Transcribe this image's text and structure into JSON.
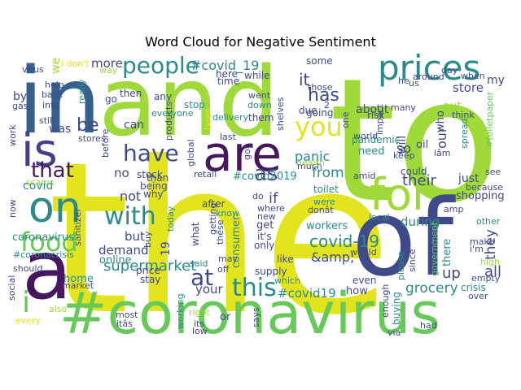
{
  "title": "Word Cloud for Negative Sentiment",
  "colors": {
    "yellow": "#e2e51d",
    "green": "#67c95a",
    "lime": "#9fd93a",
    "teal": "#2b8a8a",
    "blue": "#355f8d",
    "navy": "#3f4a8a",
    "indigo": "#433e85",
    "purple": "#46165e",
    "seagreen": "#26a783",
    "sea": "#2aa57f"
  },
  "words": [
    {
      "id": "the",
      "text": "the"
    },
    {
      "id": "to",
      "text": "to"
    },
    {
      "id": "and",
      "text": "and"
    },
    {
      "id": "in",
      "text": "in"
    },
    {
      "id": "of",
      "text": "of"
    },
    {
      "id": "coronavirus-hashtag",
      "text": "#coronavirus"
    },
    {
      "id": "a",
      "text": "a"
    },
    {
      "id": "is",
      "text": "is"
    },
    {
      "id": "are",
      "text": "are"
    },
    {
      "id": "for",
      "text": "for"
    },
    {
      "id": "prices",
      "text": "prices"
    },
    {
      "id": "on",
      "text": "on"
    },
    {
      "id": "people",
      "text": "people"
    },
    {
      "id": "you",
      "text": "you"
    },
    {
      "id": "food",
      "text": "food"
    },
    {
      "id": "with",
      "text": "with"
    },
    {
      "id": "this",
      "text": "this"
    },
    {
      "id": "have",
      "text": "have"
    },
    {
      "id": "that",
      "text": "that"
    },
    {
      "id": "at",
      "text": "at"
    },
    {
      "id": "as",
      "text": "as"
    },
    {
      "id": "be",
      "text": "be"
    },
    {
      "id": "i",
      "text": "i"
    },
    {
      "id": "covid-19",
      "text": "covid-19"
    },
    {
      "id": "covid19-hashtag-top",
      "text": "#covid_19"
    },
    {
      "id": "supermarket",
      "text": "supermarket"
    },
    {
      "id": "has",
      "text": "has"
    },
    {
      "id": "it",
      "text": "it"
    },
    {
      "id": "store",
      "text": "store"
    },
    {
      "id": "grocery",
      "text": "grocery"
    },
    {
      "id": "from",
      "text": "from"
    },
    {
      "id": "panic",
      "text": "panic"
    },
    {
      "id": "amp",
      "text": "&amp;"
    },
    {
      "id": "covid19-hashtag",
      "text": "#covid19"
    },
    {
      "id": "their",
      "text": "their"
    },
    {
      "id": "all",
      "text": "all"
    },
    {
      "id": "they",
      "text": "they"
    },
    {
      "id": "up",
      "text": "up"
    },
    {
      "id": "covid2019-hashtag",
      "text": "#covid2019"
    },
    {
      "id": "more",
      "text": "more"
    },
    {
      "id": "not",
      "text": "not"
    },
    {
      "id": "but",
      "text": "but"
    },
    {
      "id": "demand",
      "text": "demand"
    },
    {
      "id": "your",
      "text": "your"
    },
    {
      "id": "during",
      "text": "during"
    },
    {
      "id": "no",
      "text": "no"
    },
    {
      "id": "if",
      "text": "if"
    },
    {
      "id": "our",
      "text": "our"
    },
    {
      "id": "so",
      "text": "so"
    },
    {
      "id": "will",
      "text": "will"
    },
    {
      "id": "out",
      "text": "out"
    },
    {
      "id": "about",
      "text": "about"
    },
    {
      "id": "by",
      "text": "by"
    },
    {
      "id": "my",
      "text": "my"
    },
    {
      "id": "can",
      "text": "can"
    },
    {
      "id": "covid",
      "text": "covid"
    },
    {
      "id": "coronavirus",
      "text": "coronavirus"
    },
    {
      "id": "home",
      "text": "home"
    },
    {
      "id": "online",
      "text": "online"
    },
    {
      "id": "we",
      "text": "we"
    },
    {
      "id": "was",
      "text": "was"
    },
    {
      "id": "19",
      "text": "19"
    },
    {
      "id": "consumer",
      "text": "consumer"
    },
    {
      "id": "shopping",
      "text": "shopping"
    },
    {
      "id": "just",
      "text": "just"
    },
    {
      "id": "could",
      "text": "could"
    },
    {
      "id": "there",
      "text": "there"
    },
    {
      "id": "how",
      "text": "how"
    },
    {
      "id": "workers",
      "text": "workers"
    },
    {
      "id": "need",
      "text": "need"
    },
    {
      "id": "get",
      "text": "get"
    },
    {
      "id": "its",
      "text": "it's"
    },
    {
      "id": "only",
      "text": "only"
    },
    {
      "id": "like",
      "text": "like"
    },
    {
      "id": "supply",
      "text": "supply"
    },
    {
      "id": "price",
      "text": "price"
    },
    {
      "id": "stay",
      "text": "stay"
    },
    {
      "id": "buying",
      "text": "buying"
    },
    {
      "id": "crisis",
      "text": "crisis"
    },
    {
      "id": "some",
      "text": "some"
    },
    {
      "id": "here",
      "text": "here"
    },
    {
      "id": "time",
      "text": "time"
    },
    {
      "id": "while",
      "text": "while"
    },
    {
      "id": "then",
      "text": "then"
    },
    {
      "id": "go",
      "text": "go"
    },
    {
      "id": "any",
      "text": "any"
    },
    {
      "id": "stop",
      "text": "stop"
    },
    {
      "id": "them",
      "text": "them"
    },
    {
      "id": "going",
      "text": "going"
    },
    {
      "id": "due",
      "text": "due"
    },
    {
      "id": "pandemic",
      "text": "pandemic"
    },
    {
      "id": "risk",
      "text": "risk"
    },
    {
      "id": "toilet",
      "text": "toilet"
    },
    {
      "id": "after",
      "text": "after"
    },
    {
      "id": "what",
      "text": "what"
    },
    {
      "id": "why",
      "text": "why"
    },
    {
      "id": "being",
      "text": "being"
    },
    {
      "id": "than",
      "text": "than"
    },
    {
      "id": "stock",
      "text": "stock"
    },
    {
      "id": "even",
      "text": "even"
    },
    {
      "id": "said",
      "text": "said"
    },
    {
      "id": "which",
      "text": "which"
    },
    {
      "id": "because",
      "text": "because"
    },
    {
      "id": "see",
      "text": "see"
    },
    {
      "id": "other",
      "text": "other"
    },
    {
      "id": "make",
      "text": "make"
    },
    {
      "id": "im",
      "text": "i'm"
    },
    {
      "id": "would",
      "text": "would"
    },
    {
      "id": "please",
      "text": "please"
    },
    {
      "id": "since",
      "text": "since"
    },
    {
      "id": "government",
      "text": "government"
    },
    {
      "id": "over",
      "text": "over"
    },
    {
      "id": "via",
      "text": "via"
    },
    {
      "id": "had",
      "text": "had"
    },
    {
      "id": "empty",
      "text": "empty"
    },
    {
      "id": "high",
      "text": "high"
    },
    {
      "id": "enough",
      "text": "enough"
    },
    {
      "id": "most",
      "text": "most"
    },
    {
      "id": "itas",
      "text": "itâs"
    },
    {
      "id": "its2",
      "text": "its"
    },
    {
      "id": "low",
      "text": "low"
    },
    {
      "id": "right",
      "text": "right"
    },
    {
      "id": "or",
      "text": "or"
    },
    {
      "id": "says",
      "text": "says"
    },
    {
      "id": "also",
      "text": "also"
    },
    {
      "id": "every",
      "text": "every"
    },
    {
      "id": "social",
      "text": "social"
    },
    {
      "id": "market",
      "text": "market"
    },
    {
      "id": "should",
      "text": "should"
    },
    {
      "id": "coronacrisis-hashtag",
      "text": "#coronacrisis"
    },
    {
      "id": "now",
      "text": "now"
    },
    {
      "id": "work",
      "text": "work"
    },
    {
      "id": "gas",
      "text": "gas"
    },
    {
      "id": "into",
      "text": "into"
    },
    {
      "id": "still",
      "text": "still"
    },
    {
      "id": "back",
      "text": "back"
    },
    {
      "id": "help",
      "text": "help"
    },
    {
      "id": "virus",
      "text": "virus"
    },
    {
      "id": "dont",
      "text": "i don't"
    },
    {
      "id": "way",
      "text": "way"
    },
    {
      "id": "really",
      "text": "really"
    },
    {
      "id": "stores",
      "text": "stores"
    },
    {
      "id": "before",
      "text": "before"
    },
    {
      "id": "scams",
      "text": "scams"
    },
    {
      "id": "everyone",
      "text": "everyone"
    },
    {
      "id": "products",
      "text": "products"
    },
    {
      "id": "global",
      "text": "global"
    },
    {
      "id": "retail",
      "text": "retail"
    },
    {
      "id": "delivery",
      "text": "delivery"
    },
    {
      "id": "been",
      "text": "been"
    },
    {
      "id": "last",
      "text": "last"
    },
    {
      "id": "went",
      "text": "went"
    },
    {
      "id": "down",
      "text": "down"
    },
    {
      "id": "got",
      "text": "got"
    },
    {
      "id": "shelves",
      "text": "shelves"
    },
    {
      "id": "those",
      "text": "those"
    },
    {
      "id": "much",
      "text": "much"
    },
    {
      "id": "health",
      "text": "health"
    },
    {
      "id": "2",
      "text": "2"
    },
    {
      "id": "one",
      "text": "one"
    },
    {
      "id": "world",
      "text": "world"
    },
    {
      "id": "impact",
      "text": "impact"
    },
    {
      "id": "keep",
      "text": "keep"
    },
    {
      "id": "many",
      "text": "many"
    },
    {
      "id": "oil",
      "text": "oil"
    },
    {
      "id": "think",
      "text": "think"
    },
    {
      "id": "who",
      "text": "who"
    },
    {
      "id": "spread",
      "text": "spread"
    },
    {
      "id": "toiletpaper-hashtag",
      "text": "#toiletpaper"
    },
    {
      "id": "iam",
      "text": "iâm"
    },
    {
      "id": "when",
      "text": "when"
    },
    {
      "id": "day",
      "text": "day"
    },
    {
      "id": "around",
      "text": "around"
    },
    {
      "id": "he",
      "text": "he"
    },
    {
      "id": "us",
      "text": "us"
    },
    {
      "id": "amid",
      "text": "amid"
    },
    {
      "id": "amp2",
      "text": "amp"
    },
    {
      "id": "local",
      "text": "local"
    },
    {
      "id": "were",
      "text": "were"
    },
    {
      "id": "dona",
      "text": "donât"
    },
    {
      "id": "where",
      "text": "where"
    },
    {
      "id": "new",
      "text": "new"
    },
    {
      "id": "do",
      "text": "do"
    },
    {
      "id": "know",
      "text": "know"
    },
    {
      "id": "getting",
      "text": "getting"
    },
    {
      "id": "these",
      "text": "these"
    },
    {
      "id": "paper",
      "text": "paper"
    },
    {
      "id": "may",
      "text": "may"
    },
    {
      "id": "off",
      "text": "off"
    },
    {
      "id": "today",
      "text": "today"
    },
    {
      "id": "buy",
      "text": "buy"
    },
    {
      "id": "sanitizer",
      "text": "sanitizer"
    },
    {
      "id": "working",
      "text": "working"
    }
  ]
}
